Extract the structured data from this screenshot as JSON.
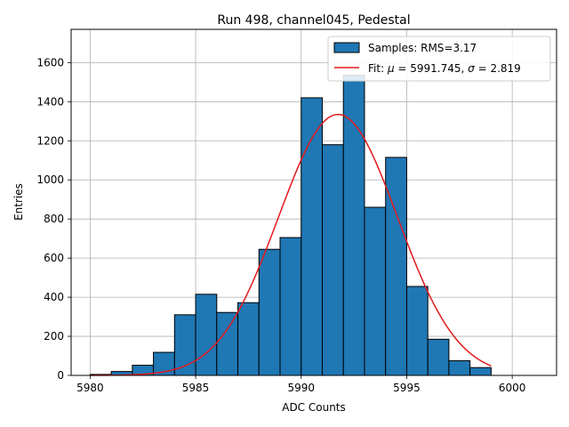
{
  "chart_data": {
    "type": "bar",
    "title": "Run 498, channel045, Pedestal",
    "xlabel": "ADC Counts",
    "ylabel": "Entries",
    "xlim": [
      5979.1,
      6002.1
    ],
    "ylim": [
      0,
      1770
    ],
    "xticks": [
      5980,
      5985,
      5990,
      5995,
      6000
    ],
    "yticks": [
      0,
      200,
      400,
      600,
      800,
      1000,
      1200,
      1400,
      1600
    ],
    "grid": true,
    "legend_position": "top-right",
    "colors": {
      "bars": "#1f77b4",
      "bar_edge": "#000000",
      "fit": "#e41a1c",
      "grid": "#b0b0b0"
    },
    "histogram": {
      "name": "Samples: RMS=3.17",
      "bin_edges": [
        5980,
        5981,
        5982,
        5983,
        5984,
        5985,
        5986,
        5987,
        5988,
        5989,
        5990,
        5991,
        5992,
        5993,
        5994,
        5995,
        5996,
        5997,
        5998,
        5999
      ],
      "counts": [
        5,
        20,
        52,
        118,
        310,
        415,
        322,
        372,
        645,
        705,
        1420,
        1180,
        1535,
        860,
        1115,
        455,
        185,
        75,
        40
      ]
    },
    "fit": {
      "name_prefix": "Fit: ",
      "mu_symbol": "μ",
      "mu_text": " = 5991.745, ",
      "sigma_symbol": "σ",
      "sigma_text": " = 2.819",
      "mu": 5991.745,
      "sigma": 2.819,
      "amplitude": 1335,
      "x_range": [
        5980,
        5999
      ]
    }
  }
}
